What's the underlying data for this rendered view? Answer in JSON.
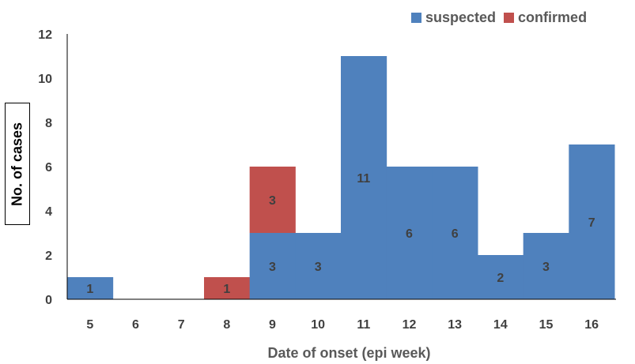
{
  "chart_data": {
    "type": "bar",
    "stacked": true,
    "categories": [
      "5",
      "6",
      "7",
      "8",
      "9",
      "10",
      "11",
      "12",
      "13",
      "14",
      "15",
      "16"
    ],
    "series": [
      {
        "name": "suspected",
        "color": "#4F81BD",
        "values": [
          1,
          0,
          0,
          0,
          3,
          3,
          11,
          6,
          6,
          2,
          3,
          7
        ]
      },
      {
        "name": "confirmed",
        "color": "#C0504D",
        "values": [
          0,
          0,
          0,
          1,
          3,
          0,
          0,
          0,
          0,
          0,
          0,
          0
        ]
      }
    ],
    "data_labels": {
      "suspected": [
        "1",
        "",
        "",
        "",
        "3",
        "3",
        "11",
        "6",
        "6",
        "2",
        "3",
        "7"
      ],
      "confirmed": [
        "",
        "",
        "",
        "1",
        "3",
        "",
        "",
        "",
        "",
        "",
        "",
        ""
      ]
    },
    "yticks": [
      "0",
      "2",
      "4",
      "6",
      "8",
      "10",
      "12"
    ],
    "ylim": [
      0,
      12
    ],
    "xlabel": "Date of onset (epi week)",
    "ylabel": "No. of cases",
    "legend_position": "top-right",
    "grid": false
  }
}
